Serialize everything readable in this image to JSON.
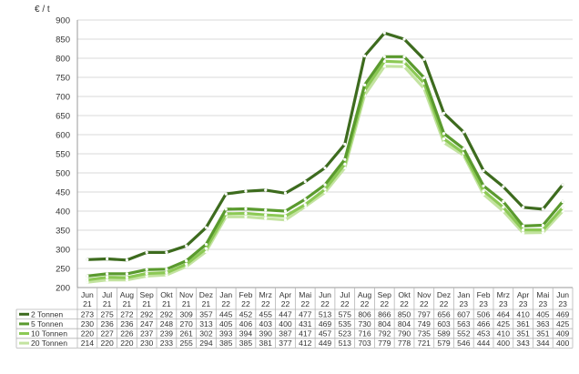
{
  "chart_data": {
    "type": "line",
    "ylabel": "€ / t",
    "ylim": [
      200,
      900
    ],
    "y_ticks": [
      200,
      250,
      300,
      350,
      400,
      450,
      500,
      550,
      600,
      650,
      700,
      750,
      800,
      850,
      900
    ],
    "grid": true,
    "categories": [
      [
        "Jun",
        "21"
      ],
      [
        "Jul",
        "21"
      ],
      [
        "Aug",
        "21"
      ],
      [
        "Sep",
        "21"
      ],
      [
        "Okt",
        "21"
      ],
      [
        "Nov",
        "21"
      ],
      [
        "Dez",
        "21"
      ],
      [
        "Jan",
        "22"
      ],
      [
        "Feb",
        "22"
      ],
      [
        "Mrz",
        "22"
      ],
      [
        "Apr",
        "22"
      ],
      [
        "Mai",
        "22"
      ],
      [
        "Jun",
        "22"
      ],
      [
        "Jul",
        "22"
      ],
      [
        "Aug",
        "22"
      ],
      [
        "Sep",
        "22"
      ],
      [
        "Okt",
        "22"
      ],
      [
        "Nov",
        "22"
      ],
      [
        "Dez",
        "22"
      ],
      [
        "Jan",
        "23"
      ],
      [
        "Feb",
        "23"
      ],
      [
        "Mrz",
        "23"
      ],
      [
        "Apr",
        "23"
      ],
      [
        "Mai",
        "23"
      ],
      [
        "Jun",
        "23"
      ]
    ],
    "series": [
      {
        "name": "2 Tonnen",
        "color": "#3d6b1e",
        "values": [
          273,
          275,
          272,
          292,
          292,
          309,
          357,
          445,
          452,
          455,
          447,
          477,
          513,
          575,
          806,
          866,
          850,
          797,
          656,
          607,
          506,
          464,
          410,
          405,
          469
        ]
      },
      {
        "name": "5 Tonnen",
        "color": "#5a9a2e",
        "values": [
          230,
          236,
          236,
          247,
          248,
          270,
          313,
          405,
          406,
          403,
          400,
          431,
          469,
          535,
          730,
          804,
          804,
          749,
          603,
          563,
          466,
          425,
          361,
          363,
          425
        ]
      },
      {
        "name": "10 Tonnen",
        "color": "#8cc955",
        "values": [
          220,
          227,
          226,
          237,
          239,
          261,
          302,
          393,
          394,
          390,
          387,
          417,
          457,
          523,
          716,
          792,
          790,
          735,
          589,
          552,
          453,
          410,
          351,
          351,
          409
        ]
      },
      {
        "name": "20 Tonnen",
        "color": "#c3e3a0",
        "values": [
          214,
          220,
          220,
          230,
          233,
          255,
          294,
          385,
          385,
          381,
          377,
          412,
          449,
          513,
          703,
          779,
          778,
          721,
          579,
          546,
          444,
          400,
          343,
          344,
          400
        ]
      }
    ]
  }
}
